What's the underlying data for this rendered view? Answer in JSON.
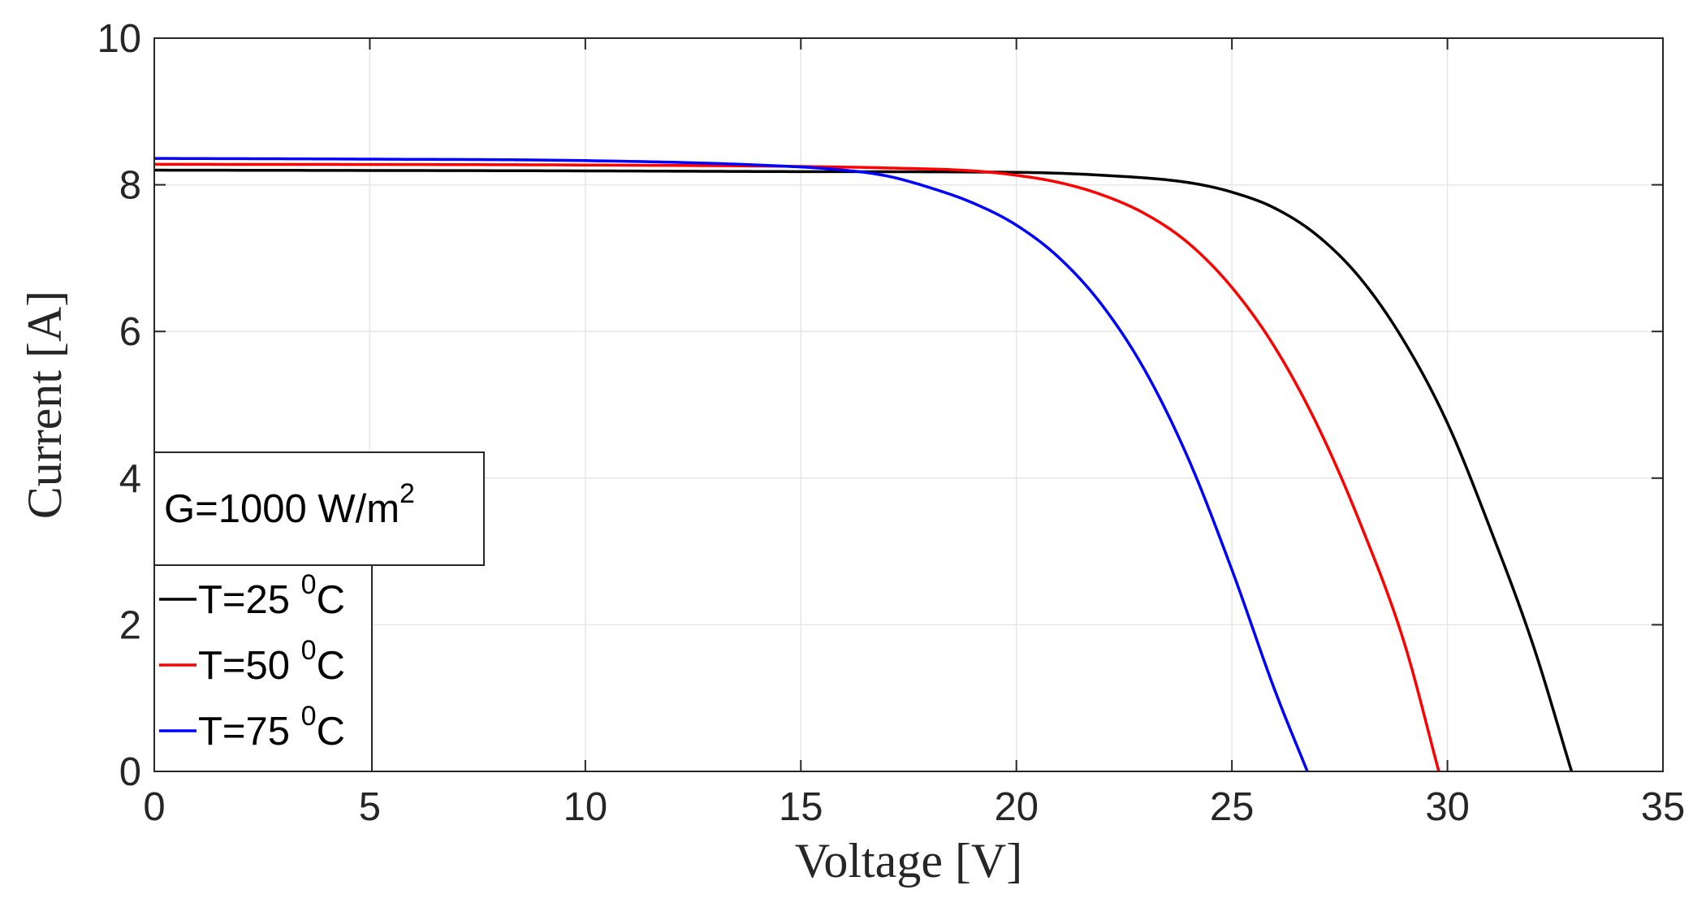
{
  "chart_data": {
    "type": "line",
    "xlabel": "Voltage [V]",
    "ylabel": "Current [A]",
    "xlim": [
      0,
      35
    ],
    "ylim": [
      0,
      10
    ],
    "xticks": [
      0,
      5,
      10,
      15,
      20,
      25,
      30,
      35
    ],
    "yticks": [
      0,
      2,
      4,
      6,
      8,
      10
    ],
    "xtick_labels": [
      "0",
      "5",
      "10",
      "15",
      "20",
      "25",
      "30",
      "35"
    ],
    "ytick_labels": [
      "0",
      "2",
      "4",
      "6",
      "8",
      "10"
    ],
    "grid": true,
    "annotation": {
      "text": "G=1000 W/m",
      "superscript": "2"
    },
    "legend": {
      "location": "bottom-left"
    },
    "series": [
      {
        "name": "T=25 0C",
        "label_main": "T=25 ",
        "label_sup": "0",
        "label_tail": "C",
        "color": "#000000",
        "x": [
          0,
          10,
          15,
          20,
          22,
          24,
          25,
          26,
          27,
          28,
          29,
          30,
          31,
          32,
          32.88
        ],
        "y": [
          8.2,
          8.19,
          8.18,
          8.17,
          8.13,
          8.03,
          7.9,
          7.68,
          7.3,
          6.71,
          5.86,
          4.75,
          3.3,
          1.7,
          0
        ]
      },
      {
        "name": "T=50 0C",
        "label_main": "T=50 ",
        "label_sup": "0",
        "label_tail": "C",
        "color": "#ff0000",
        "x": [
          0,
          10,
          15,
          17,
          19,
          20,
          21,
          22,
          23,
          24,
          25,
          26,
          27,
          28,
          29,
          29.8
        ],
        "y": [
          8.28,
          8.27,
          8.25,
          8.23,
          8.19,
          8.13,
          8.03,
          7.86,
          7.6,
          7.2,
          6.6,
          5.78,
          4.7,
          3.35,
          1.75,
          0
        ]
      },
      {
        "name": "T=75 0C",
        "label_main": "T=75 ",
        "label_sup": "0",
        "label_tail": "C",
        "color": "#0000ff",
        "x": [
          0,
          5,
          10,
          14,
          16,
          17,
          18,
          19,
          20,
          21,
          22,
          23,
          24,
          25,
          26,
          26.75
        ],
        "y": [
          8.36,
          8.35,
          8.33,
          8.27,
          8.2,
          8.12,
          7.96,
          7.75,
          7.45,
          7.0,
          6.35,
          5.45,
          4.25,
          2.75,
          1.1,
          0
        ]
      }
    ]
  }
}
